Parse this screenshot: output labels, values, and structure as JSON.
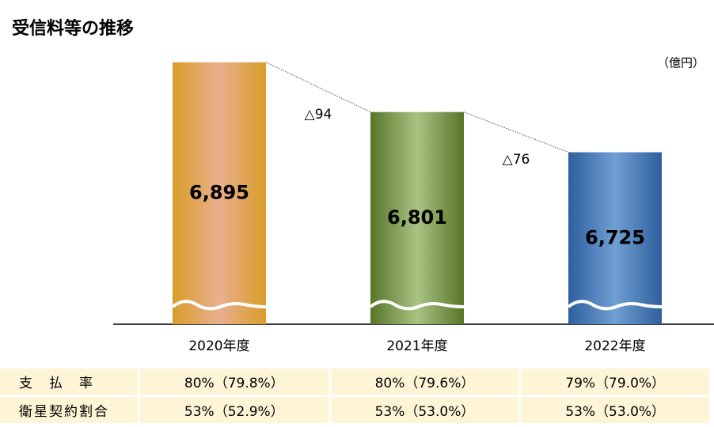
{
  "chart_data": {
    "type": "bar",
    "title": "受信料等の推移",
    "y_label": "（億円）",
    "categories": [
      "2020年度",
      "2021年度",
      "2022年度"
    ],
    "values": [
      6895,
      6801,
      6725
    ],
    "value_labels": [
      "6,895",
      "6,801",
      "6,725"
    ],
    "colors": [
      "#e0a040",
      "#7d9a4a",
      "#4a7fbf"
    ],
    "annotations": [
      "△94",
      "△76"
    ],
    "ylim": [
      6400,
      6950
    ],
    "axis_break": true
  },
  "table": {
    "rows": [
      [
        "支　払　率",
        "80%（79.8%）",
        "80%（79.6%）",
        "79%（79.0%）"
      ],
      [
        "衛星契約割合",
        "53%（52.9%）",
        "53%（53.0%）",
        "53%（53.0%）"
      ]
    ]
  }
}
